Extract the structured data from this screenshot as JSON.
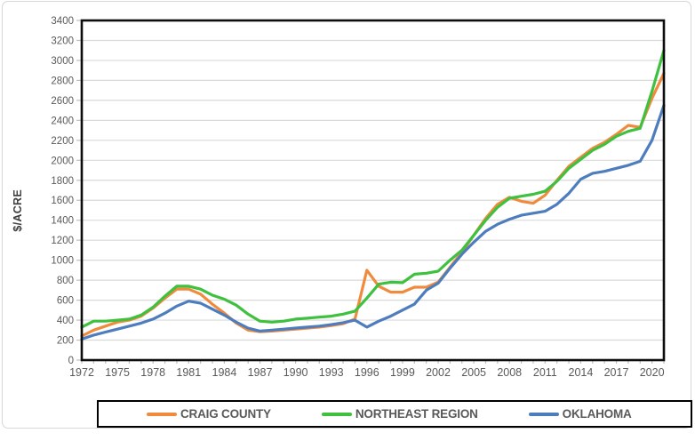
{
  "figure": {
    "background_color": "#FFFFFF",
    "border_color": "#D6D6D6",
    "axis_color": "#0D0D0D",
    "gridline_color": "#D9D9D9",
    "tick_color": "#BFBFBF",
    "tick_label_color": "#595959"
  },
  "chart_data": {
    "type": "line",
    "title": "",
    "xlabel": "",
    "ylabel": "$/ACRE",
    "ylim": [
      0,
      3400
    ],
    "ytick_step": 200,
    "grid": "horizontal",
    "legend_position": "bottom",
    "x": [
      1972,
      1973,
      1974,
      1975,
      1976,
      1977,
      1978,
      1979,
      1980,
      1981,
      1982,
      1983,
      1984,
      1985,
      1986,
      1987,
      1988,
      1989,
      1990,
      1991,
      1992,
      1993,
      1994,
      1995,
      1996,
      1997,
      1998,
      1999,
      2000,
      2001,
      2002,
      2003,
      2004,
      2005,
      2006,
      2007,
      2008,
      2009,
      2010,
      2011,
      2012,
      2013,
      2014,
      2015,
      2016,
      2017,
      2018,
      2019,
      2020,
      2021
    ],
    "xtick_labels": [
      "1972",
      "1975",
      "1978",
      "1981",
      "1984",
      "1987",
      "1990",
      "1993",
      "1996",
      "1999",
      "2002",
      "2005",
      "2008",
      "2011",
      "2014",
      "2017",
      "2020"
    ],
    "series": [
      {
        "name": "CRAIG COUNTY",
        "color": "#F08B3E",
        "values": [
          240,
          300,
          340,
          380,
          400,
          440,
          520,
          620,
          710,
          710,
          660,
          560,
          470,
          370,
          300,
          285,
          290,
          300,
          310,
          320,
          330,
          345,
          365,
          410,
          900,
          740,
          680,
          680,
          730,
          730,
          780,
          930,
          1080,
          1250,
          1420,
          1560,
          1630,
          1590,
          1570,
          1650,
          1800,
          1940,
          2030,
          2120,
          2180,
          2260,
          2350,
          2330,
          2620,
          2870
        ]
      },
      {
        "name": "NORTHEAST REGION",
        "color": "#3FC13F",
        "values": [
          330,
          390,
          390,
          400,
          410,
          450,
          530,
          640,
          740,
          740,
          710,
          650,
          610,
          550,
          460,
          390,
          380,
          390,
          410,
          420,
          430,
          440,
          460,
          490,
          620,
          760,
          780,
          775,
          860,
          870,
          890,
          1000,
          1100,
          1250,
          1400,
          1530,
          1620,
          1640,
          1660,
          1690,
          1790,
          1920,
          2010,
          2100,
          2160,
          2240,
          2290,
          2320,
          2690,
          3100
        ]
      },
      {
        "name": "OKLAHOMA",
        "color": "#4E7DBE",
        "values": [
          210,
          250,
          280,
          310,
          340,
          370,
          410,
          470,
          540,
          590,
          570,
          510,
          450,
          380,
          320,
          290,
          300,
          310,
          320,
          330,
          340,
          355,
          375,
          400,
          330,
          390,
          440,
          500,
          560,
          700,
          770,
          920,
          1060,
          1180,
          1290,
          1360,
          1410,
          1450,
          1470,
          1490,
          1560,
          1670,
          1810,
          1870,
          1890,
          1920,
          1950,
          1990,
          2200,
          2550
        ]
      }
    ]
  }
}
